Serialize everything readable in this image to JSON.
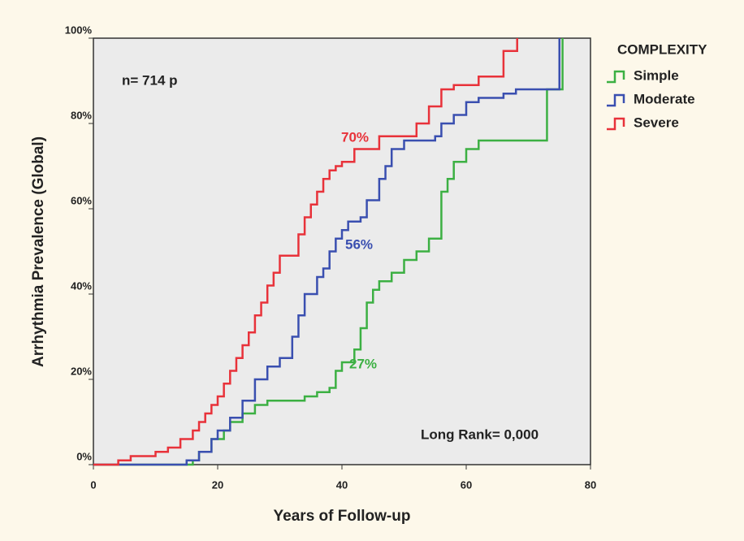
{
  "chart_data": {
    "type": "step",
    "x_label": "Years of Follow-up",
    "y_label": "Arrhythmia Prevalence (Global)",
    "legend_title": "COMPLEXITY",
    "annotations": [
      "n= 714 p",
      "70%",
      "56%",
      "27%",
      "Long Rank= 0,000"
    ],
    "xlim": [
      0,
      80
    ],
    "ylim": [
      0,
      100
    ],
    "xticks": [
      0,
      20,
      40,
      60,
      80
    ],
    "yticks": [
      {
        "value": 0,
        "label": "0%"
      },
      {
        "value": 20,
        "label": "20%"
      },
      {
        "value": 40,
        "label": "40%"
      },
      {
        "value": 60,
        "label": "60%"
      },
      {
        "value": 80,
        "label": "80%"
      },
      {
        "value": 100,
        "label": "100%"
      }
    ],
    "series": [
      {
        "name": "Simple",
        "color": "#3cb043",
        "x": [
          0,
          16,
          17,
          19,
          21,
          22,
          24,
          26,
          28,
          34,
          36,
          38,
          39,
          40,
          42,
          43,
          44,
          45,
          46,
          48,
          50,
          52,
          54,
          56,
          57,
          58,
          60,
          62,
          73,
          75.5
        ],
        "values": [
          0,
          1,
          3,
          6,
          8,
          10,
          12,
          14,
          15,
          16,
          17,
          18,
          22,
          24,
          27,
          32,
          38,
          41,
          43,
          45,
          48,
          50,
          53,
          64,
          67,
          71,
          74,
          76,
          88,
          100
        ]
      },
      {
        "name": "Moderate",
        "color": "#3a4fb0",
        "x": [
          0,
          15,
          17,
          19,
          20,
          22,
          24,
          26,
          28,
          30,
          32,
          33,
          34,
          36,
          37,
          38,
          39,
          40,
          41,
          43,
          44,
          46,
          47,
          48,
          50,
          55,
          56,
          58,
          60,
          62,
          66,
          68,
          75
        ],
        "values": [
          0,
          1,
          3,
          6,
          8,
          11,
          15,
          20,
          23,
          25,
          30,
          35,
          40,
          44,
          46,
          50,
          53,
          55,
          57,
          58,
          62,
          67,
          70,
          74,
          76,
          77,
          80,
          82,
          85,
          86,
          87,
          88,
          100
        ]
      },
      {
        "name": "Severe",
        "color": "#e8323a",
        "x": [
          0,
          4,
          6,
          10,
          12,
          14,
          16,
          17,
          18,
          19,
          20,
          21,
          22,
          23,
          24,
          25,
          26,
          27,
          28,
          29,
          30,
          33,
          34,
          35,
          36,
          37,
          38,
          39,
          40,
          42,
          46,
          52,
          54,
          56,
          58,
          62,
          66,
          68.2
        ],
        "values": [
          0,
          1,
          2,
          3,
          4,
          6,
          8,
          10,
          12,
          14,
          16,
          19,
          22,
          25,
          28,
          31,
          35,
          38,
          42,
          45,
          49,
          54,
          58,
          61,
          64,
          67,
          69,
          70,
          71,
          74,
          77,
          80,
          84,
          88,
          89,
          91,
          97,
          100
        ]
      }
    ]
  }
}
